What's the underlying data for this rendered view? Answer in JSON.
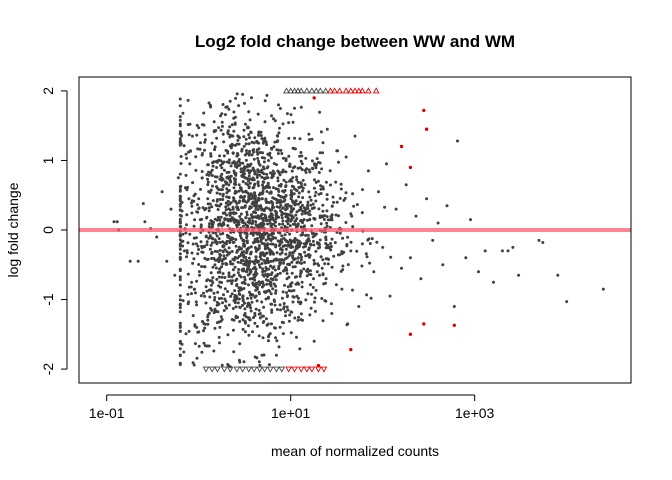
{
  "chart_data": {
    "type": "scatter",
    "title": "Log2 fold change between WW and WM",
    "xlabel": "mean of normalized counts",
    "ylabel": "log fold change",
    "x_scale": "log10",
    "xlim": [
      0.05,
      50000
    ],
    "ylim": [
      -2.2,
      2.2
    ],
    "x_ticks": [
      {
        "value": 0.1,
        "label": "1e-01"
      },
      {
        "value": 10,
        "label": "1e+01"
      },
      {
        "value": 1000,
        "label": "1e+03"
      }
    ],
    "y_ticks": [
      {
        "value": -2,
        "label": "-2"
      },
      {
        "value": -1,
        "label": "-1"
      },
      {
        "value": 0,
        "label": "0"
      },
      {
        "value": 1,
        "label": "1"
      },
      {
        "value": 2,
        "label": "2"
      }
    ],
    "reference_line": {
      "y": 0,
      "color": "#ff5a6e"
    },
    "colors": {
      "not_significant": "#404040",
      "significant": "#e00000"
    },
    "grid": false,
    "series": [
      {
        "kind": "points",
        "values": [
          [
            0.12,
            0.12
          ],
          [
            0.13,
            0.12
          ],
          [
            0.135,
            0.0
          ],
          [
            0.18,
            -0.45
          ],
          [
            0.22,
            -0.45
          ],
          [
            0.25,
            0.38
          ],
          [
            0.26,
            0.12
          ],
          [
            0.3,
            0.02
          ],
          [
            0.35,
            -0.1
          ],
          [
            0.4,
            0.55
          ],
          [
            0.45,
            -0.45
          ],
          [
            0.5,
            0.3
          ],
          [
            0.55,
            -0.65
          ],
          [
            0.6,
            0.75
          ],
          [
            0.65,
            0.2
          ],
          [
            0.7,
            -0.3
          ],
          [
            0.8,
            0.95
          ],
          [
            0.9,
            -0.85
          ],
          [
            1.0,
            0.45
          ],
          [
            1.1,
            1.1
          ],
          [
            1.2,
            -1.05
          ],
          [
            1.3,
            0.05
          ],
          [
            1.4,
            1.25
          ],
          [
            1.5,
            -0.5
          ],
          [
            1.6,
            0.6
          ],
          [
            1.7,
            -1.4
          ],
          [
            1.8,
            1.55
          ],
          [
            2.0,
            -0.2
          ],
          [
            2.2,
            1.85
          ],
          [
            2.4,
            -1.75
          ],
          [
            2.6,
            0.9
          ],
          [
            2.8,
            -1.9
          ],
          [
            3.0,
            1.95
          ],
          [
            3.2,
            -1.2
          ],
          [
            3.5,
            1.7
          ],
          [
            3.8,
            -0.7
          ],
          [
            4.0,
            0.35
          ],
          [
            4.5,
            1.4
          ],
          [
            5.0,
            -1.55
          ],
          [
            5.5,
            0.8
          ],
          [
            6.0,
            -0.35
          ],
          [
            6.5,
            1.6
          ],
          [
            7.0,
            -1.8
          ],
          [
            8.0,
            1.1
          ],
          [
            9.0,
            -0.9
          ],
          [
            10,
            0.5
          ],
          [
            11,
            1.75
          ],
          [
            12,
            -1.3
          ],
          [
            14,
            0.15
          ],
          [
            16,
            1.3
          ],
          [
            18,
            -1.6
          ],
          [
            20,
            0.7
          ],
          [
            22,
            -0.55
          ],
          [
            25,
            1.45
          ],
          [
            28,
            -1.2
          ],
          [
            32,
            0.4
          ],
          [
            36,
            -0.85
          ],
          [
            40,
            1.05
          ],
          [
            45,
            -0.3
          ],
          [
            50,
            1.35
          ],
          [
            55,
            -1.1
          ],
          [
            60,
            0.25
          ],
          [
            70,
            0.85
          ],
          [
            80,
            -0.6
          ],
          [
            90,
            0.55
          ],
          [
            100,
            -0.25
          ],
          [
            110,
            0.95
          ],
          [
            120,
            -0.95
          ],
          [
            140,
            0.3
          ],
          [
            160,
            -0.55
          ],
          [
            180,
            0.65
          ],
          [
            200,
            -0.4
          ],
          [
            230,
            0.2
          ],
          [
            260,
            -0.7
          ],
          [
            300,
            0.45
          ],
          [
            350,
            -0.15
          ],
          [
            400,
            0.1
          ],
          [
            450,
            -0.5
          ],
          [
            500,
            0.35
          ],
          [
            600,
            -1.1
          ],
          [
            650,
            1.28
          ],
          [
            800,
            -0.4
          ],
          [
            900,
            0.15
          ],
          [
            1100,
            -0.6
          ],
          [
            1300,
            -0.3
          ],
          [
            1600,
            -0.75
          ],
          [
            2000,
            -0.3
          ],
          [
            2300,
            -0.3
          ],
          [
            2600,
            -0.25
          ],
          [
            3000,
            -0.65
          ],
          [
            5000,
            -0.15
          ],
          [
            5500,
            -0.18
          ],
          [
            8000,
            -0.65
          ],
          [
            10000,
            -1.03
          ],
          [
            25000,
            -0.85
          ]
        ]
      },
      {
        "kind": "significant_points",
        "values": [
          [
            45,
            -1.72
          ],
          [
            160,
            1.2
          ],
          [
            200,
            0.9
          ],
          [
            280,
            1.72
          ],
          [
            300,
            1.45
          ],
          [
            280,
            -1.35
          ],
          [
            600,
            -1.37
          ],
          [
            200,
            -1.5
          ],
          [
            20,
            -1.95
          ],
          [
            18,
            1.9
          ]
        ]
      },
      {
        "kind": "capped_top",
        "values": [
          [
            9,
            2
          ],
          [
            10,
            2
          ],
          [
            11,
            2
          ],
          [
            12,
            2
          ],
          [
            13,
            2
          ],
          [
            15,
            2
          ],
          [
            17,
            2
          ],
          [
            19,
            2
          ],
          [
            21,
            2
          ],
          [
            24,
            2
          ],
          [
            27,
            2
          ],
          [
            30,
            2
          ],
          [
            34,
            2
          ],
          [
            40,
            2
          ],
          [
            45,
            2
          ],
          [
            50,
            2
          ],
          [
            55,
            2
          ],
          [
            60,
            2
          ],
          [
            70,
            2
          ],
          [
            85,
            2
          ]
        ]
      },
      {
        "kind": "capped_bottom",
        "values": [
          [
            1.2,
            -2
          ],
          [
            1.4,
            -2
          ],
          [
            1.6,
            -2
          ],
          [
            1.9,
            -2
          ],
          [
            2.2,
            -2
          ],
          [
            2.6,
            -2
          ],
          [
            3.0,
            -2
          ],
          [
            3.5,
            -2
          ],
          [
            4.0,
            -2
          ],
          [
            4.6,
            -2
          ],
          [
            5.2,
            -2
          ],
          [
            6.0,
            -2
          ],
          [
            7.0,
            -2
          ],
          [
            8.0,
            -2
          ],
          [
            9.5,
            -2
          ],
          [
            11,
            -2
          ],
          [
            13,
            -2
          ],
          [
            15,
            -2
          ],
          [
            17,
            -2
          ],
          [
            20,
            -2
          ],
          [
            23,
            -2
          ]
        ]
      }
    ]
  }
}
